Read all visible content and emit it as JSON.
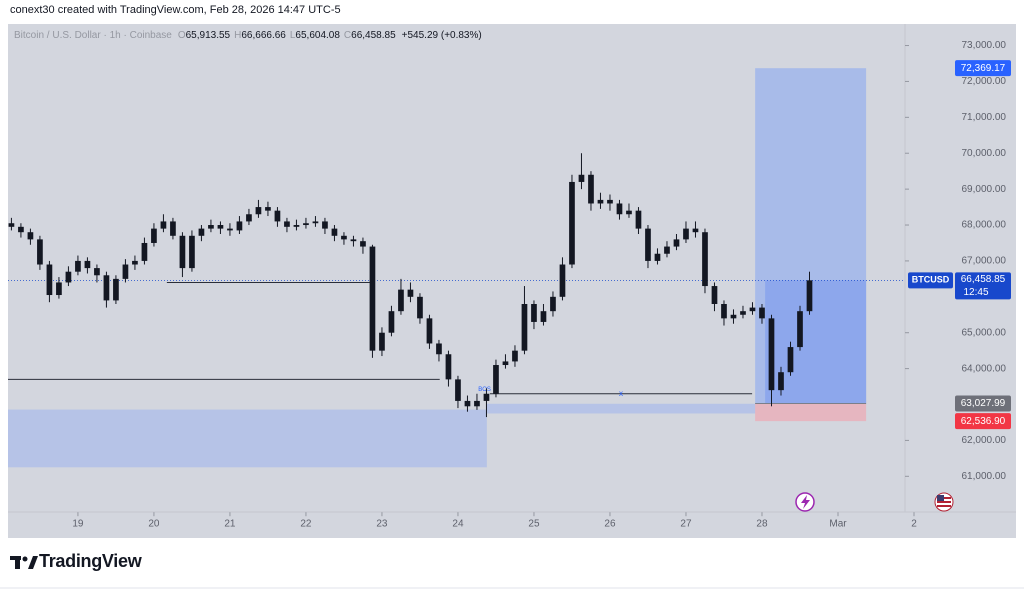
{
  "header": {
    "credit": "conext30 created with TradingView.com, Feb 28, 2026 14:47 UTC-5"
  },
  "footer": {
    "brand": "TradingView"
  },
  "chart_data": {
    "type": "candlestick",
    "symbol": "Bitcoin / U.S. Dollar · 1h · Coinbase",
    "ohlc": [
      {
        "name": "O",
        "value": 65913.55,
        "label": "65,913.55"
      },
      {
        "name": "H",
        "value": 66666.66,
        "label": "66,666.66"
      },
      {
        "name": "L",
        "value": 65604.08,
        "label": "65,604.08"
      },
      {
        "name": "C",
        "value": 66458.85,
        "label": "66,458.85"
      }
    ],
    "change": "+545.29 (+0.83%)",
    "color": "#131722",
    "x": [
      18.125,
      18.25,
      18.375,
      18.5,
      18.625,
      18.75,
      18.875,
      19,
      19.125,
      19.25,
      19.375,
      19.5,
      19.625,
      19.75,
      19.875,
      20,
      20.125,
      20.25,
      20.375,
      20.5,
      20.625,
      20.75,
      20.875,
      21,
      21.125,
      21.25,
      21.375,
      21.5,
      21.625,
      21.75,
      21.875,
      22,
      22.125,
      22.25,
      22.375,
      22.5,
      22.625,
      22.75,
      22.875,
      23,
      23.125,
      23.25,
      23.375,
      23.5,
      23.625,
      23.75,
      23.875,
      24,
      24.125,
      24.25,
      24.375,
      24.5,
      24.625,
      24.75,
      24.875,
      25,
      25.125,
      25.25,
      25.375,
      25.5,
      25.625,
      25.75,
      25.875,
      26,
      26.125,
      26.25,
      26.375,
      26.5,
      26.625,
      26.75,
      26.875,
      27,
      27.125,
      27.25,
      27.375,
      27.5,
      27.625,
      27.75,
      27.875,
      28,
      28.125,
      28.25,
      28.375,
      28.5,
      28.625
    ],
    "open": [
      68050,
      67950,
      67800,
      67600,
      66900,
      66050,
      66400,
      66700,
      67000,
      66800,
      66600,
      65900,
      66500,
      66900,
      67000,
      67500,
      67900,
      68100,
      67700,
      66800,
      67700,
      67900,
      68000,
      67900,
      67850,
      68100,
      68300,
      68500,
      68400,
      68100,
      67950,
      68000,
      68050,
      68100,
      67900,
      67700,
      67600,
      67550,
      67400,
      64500,
      65000,
      65600,
      66200,
      66000,
      65400,
      64700,
      64400,
      63700,
      63100,
      62950,
      63100,
      63300,
      64100,
      64200,
      64500,
      65800,
      65300,
      65600,
      66000,
      66900,
      69200,
      69400,
      68600,
      68700,
      68600,
      68300,
      68400,
      67900,
      67000,
      67200,
      67400,
      67600,
      67900,
      67800,
      66300,
      65800,
      65400,
      65500,
      65600,
      65700,
      65400,
      63400,
      63900,
      64600,
      65600
    ],
    "high": [
      68200,
      68050,
      67900,
      67700,
      67000,
      66550,
      66850,
      67150,
      67100,
      66900,
      66700,
      66600,
      67050,
      67150,
      67650,
      68050,
      68300,
      68200,
      67800,
      67850,
      68000,
      68150,
      68100,
      68050,
      68250,
      68450,
      68700,
      68650,
      68500,
      68200,
      68150,
      68200,
      68250,
      68200,
      68000,
      67800,
      67700,
      67650,
      67450,
      65150,
      65750,
      66500,
      66400,
      66100,
      65500,
      64800,
      64500,
      63800,
      63250,
      63300,
      63450,
      64250,
      64400,
      64650,
      66300,
      65900,
      65800,
      66150,
      67100,
      69400,
      70000,
      69500,
      68900,
      68850,
      68700,
      68600,
      68500,
      68000,
      67350,
      67550,
      67750,
      68100,
      68100,
      67900,
      66400,
      65900,
      65650,
      65750,
      65850,
      65800,
      65500,
      64050,
      64750,
      65750,
      66700
    ],
    "low": [
      67850,
      67650,
      67450,
      66750,
      65850,
      65950,
      66300,
      66600,
      66650,
      66400,
      65700,
      65800,
      66400,
      66750,
      66900,
      67400,
      67800,
      67600,
      66550,
      66700,
      67550,
      67800,
      67750,
      67700,
      67750,
      68000,
      68200,
      68250,
      67950,
      67800,
      67850,
      67900,
      67950,
      67750,
      67550,
      67450,
      67400,
      67200,
      64300,
      64350,
      64900,
      65500,
      65850,
      65250,
      64550,
      64200,
      63500,
      62900,
      62800,
      62850,
      62650,
      63200,
      64000,
      64050,
      64400,
      65100,
      65200,
      65450,
      65900,
      66800,
      69000,
      68400,
      68450,
      68400,
      68150,
      68200,
      67750,
      66800,
      66900,
      67100,
      67300,
      67500,
      67650,
      66100,
      65600,
      65200,
      65250,
      65400,
      65500,
      65250,
      62950,
      63250,
      63800,
      64500,
      65500
    ],
    "close": [
      67950,
      67800,
      67600,
      66900,
      66050,
      66400,
      66700,
      67000,
      66800,
      66600,
      65900,
      66500,
      66900,
      67000,
      67500,
      67900,
      68100,
      67700,
      66800,
      67700,
      67900,
      68000,
      67900,
      67850,
      68100,
      68300,
      68500,
      68400,
      68100,
      67950,
      68000,
      68050,
      68100,
      67900,
      67700,
      67600,
      67550,
      67400,
      64500,
      65000,
      65600,
      66200,
      66000,
      65400,
      64700,
      64400,
      63700,
      63100,
      62950,
      63100,
      63300,
      64100,
      64200,
      64500,
      65800,
      65300,
      65600,
      66000,
      66900,
      69200,
      69400,
      68600,
      68700,
      68600,
      68300,
      68400,
      67900,
      67000,
      67200,
      67400,
      67600,
      67900,
      67800,
      66300,
      65800,
      65400,
      65500,
      65600,
      65700,
      65400,
      63400,
      63900,
      64600,
      65600,
      66458.85
    ],
    "xlim": [
      18.08,
      30.5
    ],
    "ylim": [
      60000,
      73600
    ],
    "xticks": [
      19,
      20,
      21,
      22,
      23,
      24,
      25,
      26,
      27,
      28,
      {
        "value": 29,
        "label": "Mar"
      },
      {
        "value": 30,
        "label": "2"
      }
    ],
    "yticks": [
      {
        "value": 73000,
        "label": "73,000.00"
      },
      {
        "value": 72000,
        "label": "72,000.00"
      },
      {
        "value": 71000,
        "label": "71,000.00"
      },
      {
        "value": 70000,
        "label": "70,000.00"
      },
      {
        "value": 69000,
        "label": "69,000.00"
      },
      {
        "value": 68000,
        "label": "68,000.00"
      },
      {
        "value": 67000,
        "label": "67,000.00"
      },
      {
        "value": 65000,
        "label": "65,000.00"
      },
      {
        "value": 64000,
        "label": "64,000.00"
      },
      {
        "value": 62000,
        "label": "62,000.00"
      },
      {
        "value": 61000,
        "label": "61,000.00"
      }
    ],
    "last_price": {
      "name": "BTCUSD",
      "value": 66458.85,
      "label": "66,458.85",
      "countdown": "12:45",
      "color": "#1848cc"
    },
    "zones": [
      {
        "x": [
          18.08,
          24.38
        ],
        "y": [
          61250,
          62860
        ],
        "color": "#b2c1e8"
      },
      {
        "x": [
          24.38,
          28.33
        ],
        "y": [
          62750,
          63020
        ],
        "color": "#b2c1e8"
      }
    ],
    "lines": [
      {
        "x": [
          20.17,
          22.84
        ],
        "y": 66400
      },
      {
        "x": [
          18.08,
          23.76
        ],
        "y": 63700
      },
      {
        "x": [
          24.42,
          27.87
        ],
        "y": 63300,
        "label": "x"
      }
    ],
    "bos_label": {
      "text": "BOS",
      "x": 24.35,
      "y": 63420
    },
    "position": {
      "x": [
        27.91,
        29.37
      ],
      "target": {
        "value": 72369.17,
        "label": "72,369.17",
        "color": "#2962ff"
      },
      "entry": {
        "value": 63027.99,
        "label": "63,027.99",
        "color": "#6e7079"
      },
      "stop": {
        "value": 62536.9,
        "label": "62,536.90",
        "color": "#f23645"
      }
    }
  }
}
